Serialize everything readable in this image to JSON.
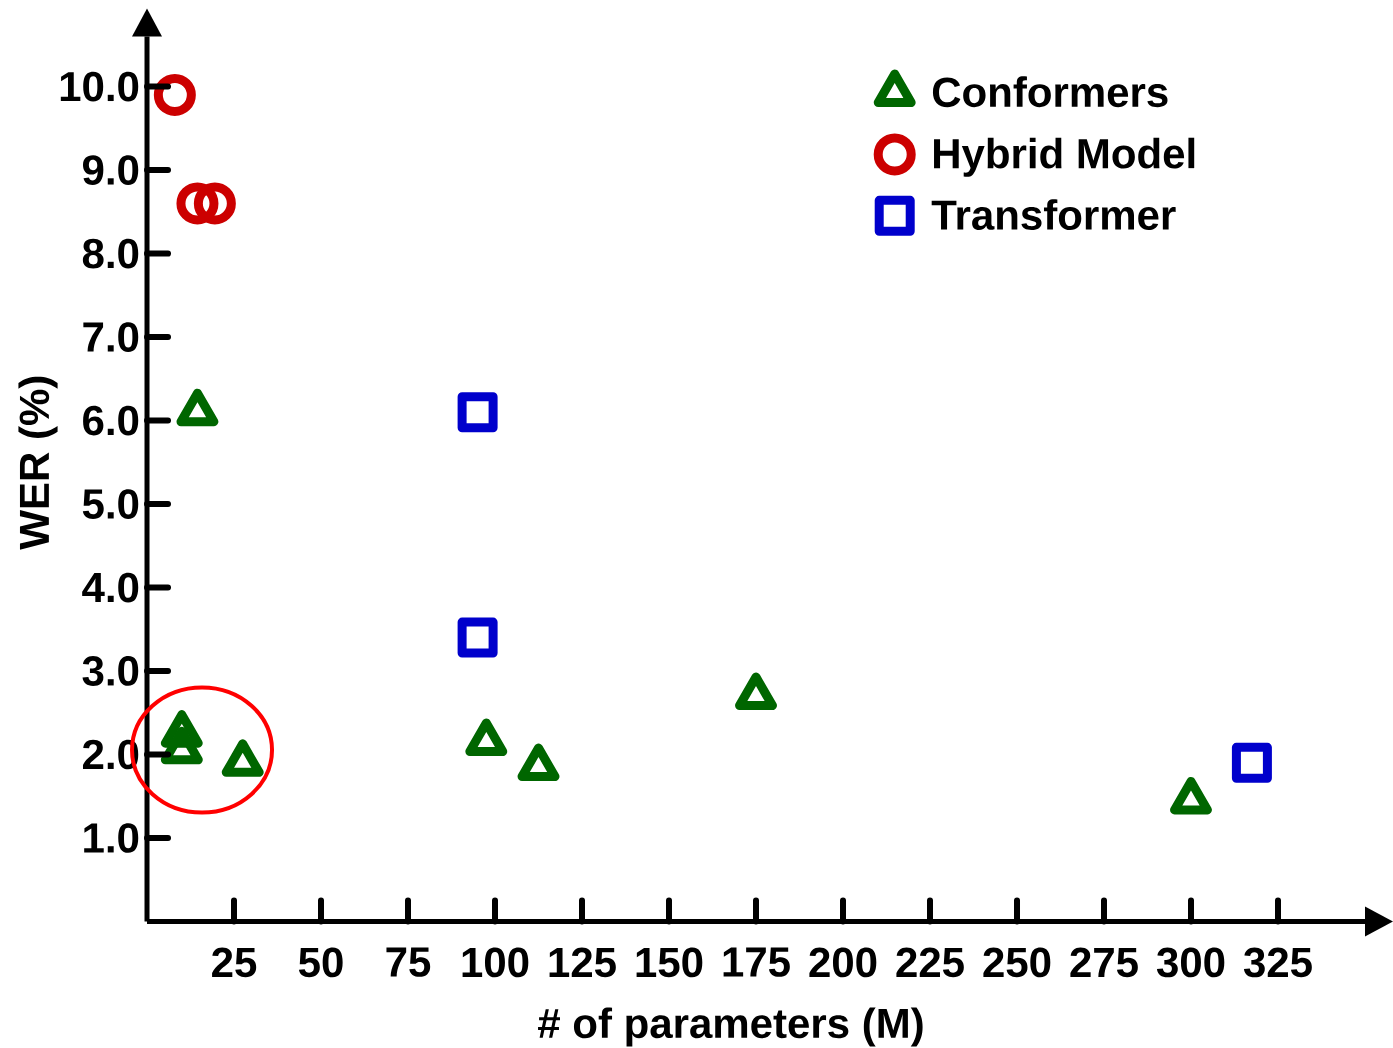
{
  "chart_data": {
    "type": "scatter",
    "xlabel": "# of parameters (M)",
    "ylabel": "WER (%)",
    "series": [
      {
        "name": "Conformers",
        "color": "#006600",
        "marker": "triangle",
        "x": [
          10,
          10,
          14.5,
          27.5,
          97.5,
          112.5,
          175,
          300
        ],
        "values": [
          2.25,
          2.05,
          6.1,
          1.9,
          2.15,
          1.85,
          2.7,
          1.45
        ]
      },
      {
        "name": "Hybrid Model",
        "color": "#cc0000",
        "marker": "circle",
        "x": [
          8,
          14.5,
          19.5
        ],
        "values": [
          9.9,
          8.6,
          8.6
        ]
      },
      {
        "name": "Transformer",
        "color": "#0000cc",
        "marker": "square",
        "x": [
          95,
          95,
          317.5
        ],
        "values": [
          6.1,
          3.4,
          1.9
        ]
      }
    ],
    "xlim": [
      0,
      350
    ],
    "ylim": [
      0,
      10.6
    ],
    "xticks": [
      25,
      50,
      75,
      100,
      125,
      150,
      175,
      200,
      225,
      250,
      275,
      300,
      325
    ],
    "yticks": [
      {
        "value": 1,
        "label": "1.0"
      },
      {
        "value": 2,
        "label": "2.0"
      },
      {
        "value": 3,
        "label": "3.0"
      },
      {
        "value": 4,
        "label": "4.0"
      },
      {
        "value": 5,
        "label": "5.0"
      },
      {
        "value": 6,
        "label": "6.0"
      },
      {
        "value": 7,
        "label": "7.0"
      },
      {
        "value": 8,
        "label": "8.0"
      },
      {
        "value": 9,
        "label": "9.0"
      },
      {
        "value": 10,
        "label": "10.0"
      }
    ],
    "legend": "top right"
  }
}
